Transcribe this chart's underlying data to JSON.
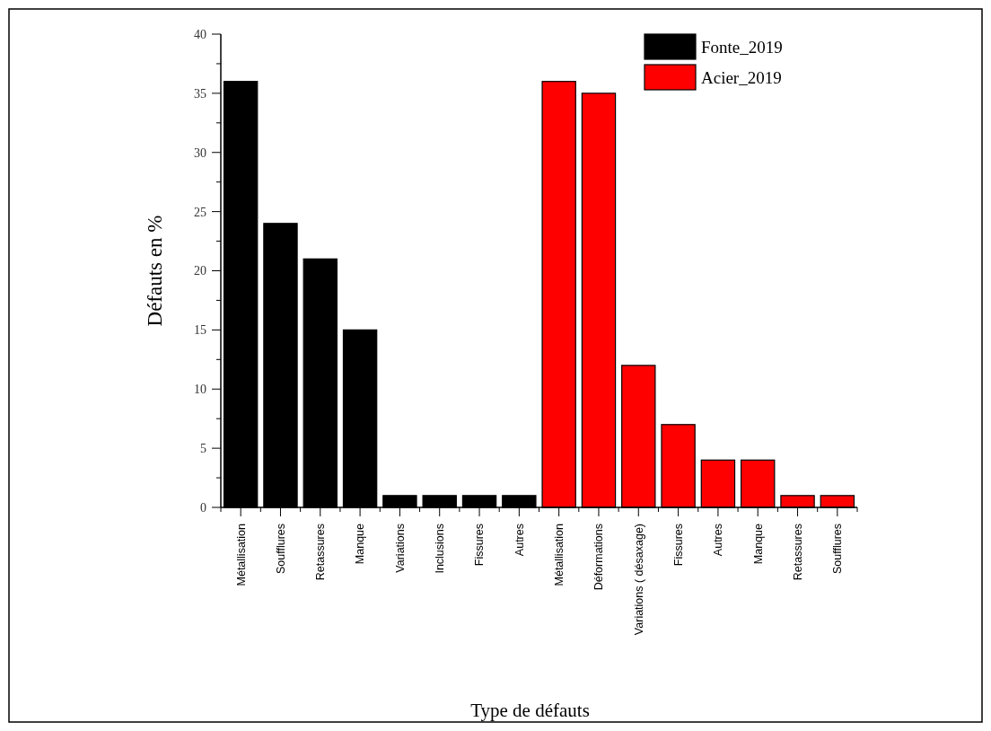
{
  "chart_data": {
    "type": "bar",
    "xlabel": "Type de défauts",
    "ylabel": "Défauts en %",
    "categories": [
      "Métallisation",
      "Soufflures",
      "Retassures",
      "Manque",
      "Variations",
      "Inclusions",
      "Fissures",
      "Autres",
      "Métallisation",
      "Déformations",
      "Variations ( désaxage)",
      "Fissures",
      "Autres",
      "Manque",
      "Retassures",
      "Soufflures"
    ],
    "series": [
      {
        "name": "Fonte_2019",
        "color": "#000000",
        "values": [
          36,
          24,
          21,
          15,
          1,
          1,
          1,
          1,
          null,
          null,
          null,
          null,
          null,
          null,
          null,
          null
        ]
      },
      {
        "name": "Acier_2019",
        "color": "#ff0000",
        "values": [
          null,
          null,
          null,
          null,
          null,
          null,
          null,
          null,
          36,
          35,
          12,
          7,
          4,
          4,
          1,
          1
        ]
      }
    ],
    "ylim": [
      0,
      40
    ],
    "yticks": [
      0,
      {
        "value": 2.5,
        "label": null
      },
      5,
      {
        "value": 7.5,
        "label": null
      },
      10,
      {
        "value": 12.5,
        "label": null
      },
      15,
      {
        "value": 17.5,
        "label": null
      },
      20,
      {
        "value": 22.5,
        "label": null
      },
      25,
      {
        "value": 27.5,
        "label": null
      },
      30,
      {
        "value": 32.5,
        "label": null
      },
      35,
      {
        "value": 37.5,
        "label": null
      },
      40
    ],
    "legend": "top right",
    "grid": false
  }
}
